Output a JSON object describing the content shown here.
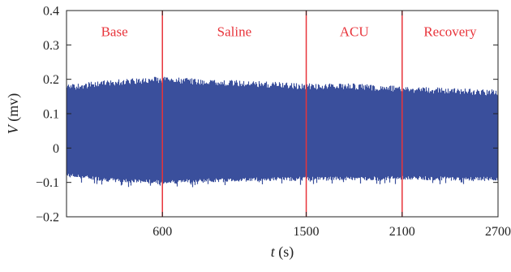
{
  "chart_data": {
    "type": "area",
    "xlabel": {
      "symbol": "t",
      "unit": " (s)"
    },
    "ylabel": {
      "symbol": "V",
      "unit": " (mv)"
    },
    "xlim": [
      0,
      2700
    ],
    "ylim": [
      -0.2,
      0.4
    ],
    "x_ticks": [
      600,
      1500,
      2100,
      2700
    ],
    "y_ticks": [
      {
        "value": 0.4,
        "label": "0.4"
      },
      {
        "value": 0.3,
        "label": "0.3"
      },
      {
        "value": 0.2,
        "label": "0.2"
      },
      {
        "value": 0.1,
        "label": "0.1"
      },
      {
        "value": 0,
        "label": "0"
      },
      {
        "value": -0.1,
        "label": "−0.1"
      },
      {
        "value": -0.2,
        "label": "−0.2"
      }
    ],
    "grid": false,
    "series_color": "#3a4f9c",
    "divider_color": "#e8333a",
    "phase_label_color": "#e8333a",
    "dividers": [
      600,
      1500,
      2100
    ],
    "phases": [
      {
        "label": "Base",
        "x": 300
      },
      {
        "label": "Saline",
        "x": 1050
      },
      {
        "label": "ACU",
        "x": 1800
      },
      {
        "label": "Recovery",
        "x": 2400
      }
    ],
    "envelope": {
      "x": [
        0,
        300,
        600,
        900,
        1200,
        1500,
        1800,
        2100,
        2400,
        2700
      ],
      "upper": [
        0.185,
        0.2,
        0.208,
        0.2,
        0.195,
        0.188,
        0.188,
        0.18,
        0.175,
        0.17
      ],
      "lower": [
        -0.085,
        -0.1,
        -0.105,
        -0.1,
        -0.097,
        -0.095,
        -0.095,
        -0.093,
        -0.095,
        -0.095
      ]
    }
  }
}
